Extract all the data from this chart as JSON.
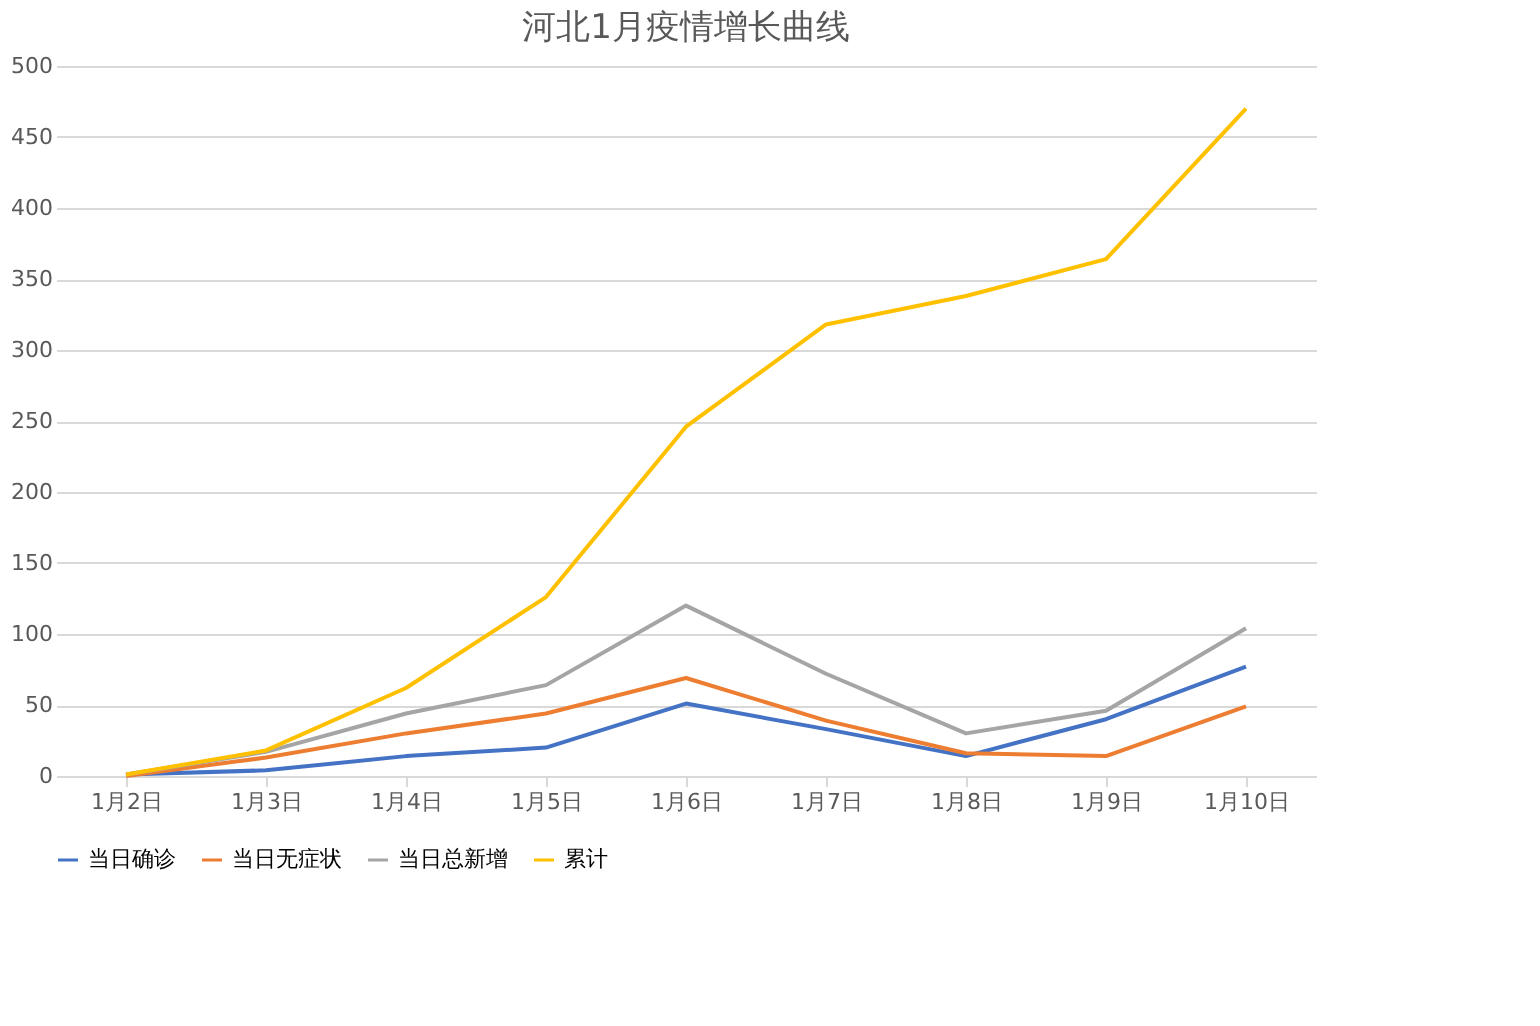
{
  "chart_data": {
    "type": "line",
    "title": "河北1月疫情增长曲线",
    "categories": [
      "1月2日",
      "1月3日",
      "1月4日",
      "1月5日",
      "1月6日",
      "1月7日",
      "1月8日",
      "1月9日",
      "1月10日"
    ],
    "series": [
      {
        "name": "当日确诊",
        "color": "#4472c4",
        "values": [
          1,
          4,
          14,
          20,
          51,
          33,
          14,
          40,
          77
        ]
      },
      {
        "name": "当日无症状",
        "color": "#ed7d31",
        "values": [
          0,
          13,
          30,
          44,
          69,
          39,
          16,
          14,
          49
        ]
      },
      {
        "name": "当日总新增",
        "color": "#a5a5a5",
        "values": [
          1,
          17,
          44,
          64,
          120,
          72,
          30,
          46,
          104
        ]
      },
      {
        "name": "累计",
        "color": "#ffc000",
        "values": [
          1,
          18,
          62,
          126,
          246,
          318,
          338,
          364,
          470
        ]
      }
    ],
    "ylim": [
      0,
      500
    ],
    "yticks": [
      0,
      50,
      100,
      150,
      200,
      250,
      300,
      350,
      400,
      450,
      500
    ],
    "grid": "y",
    "legend": "bottom",
    "marker": "none",
    "line_style": "solid"
  }
}
